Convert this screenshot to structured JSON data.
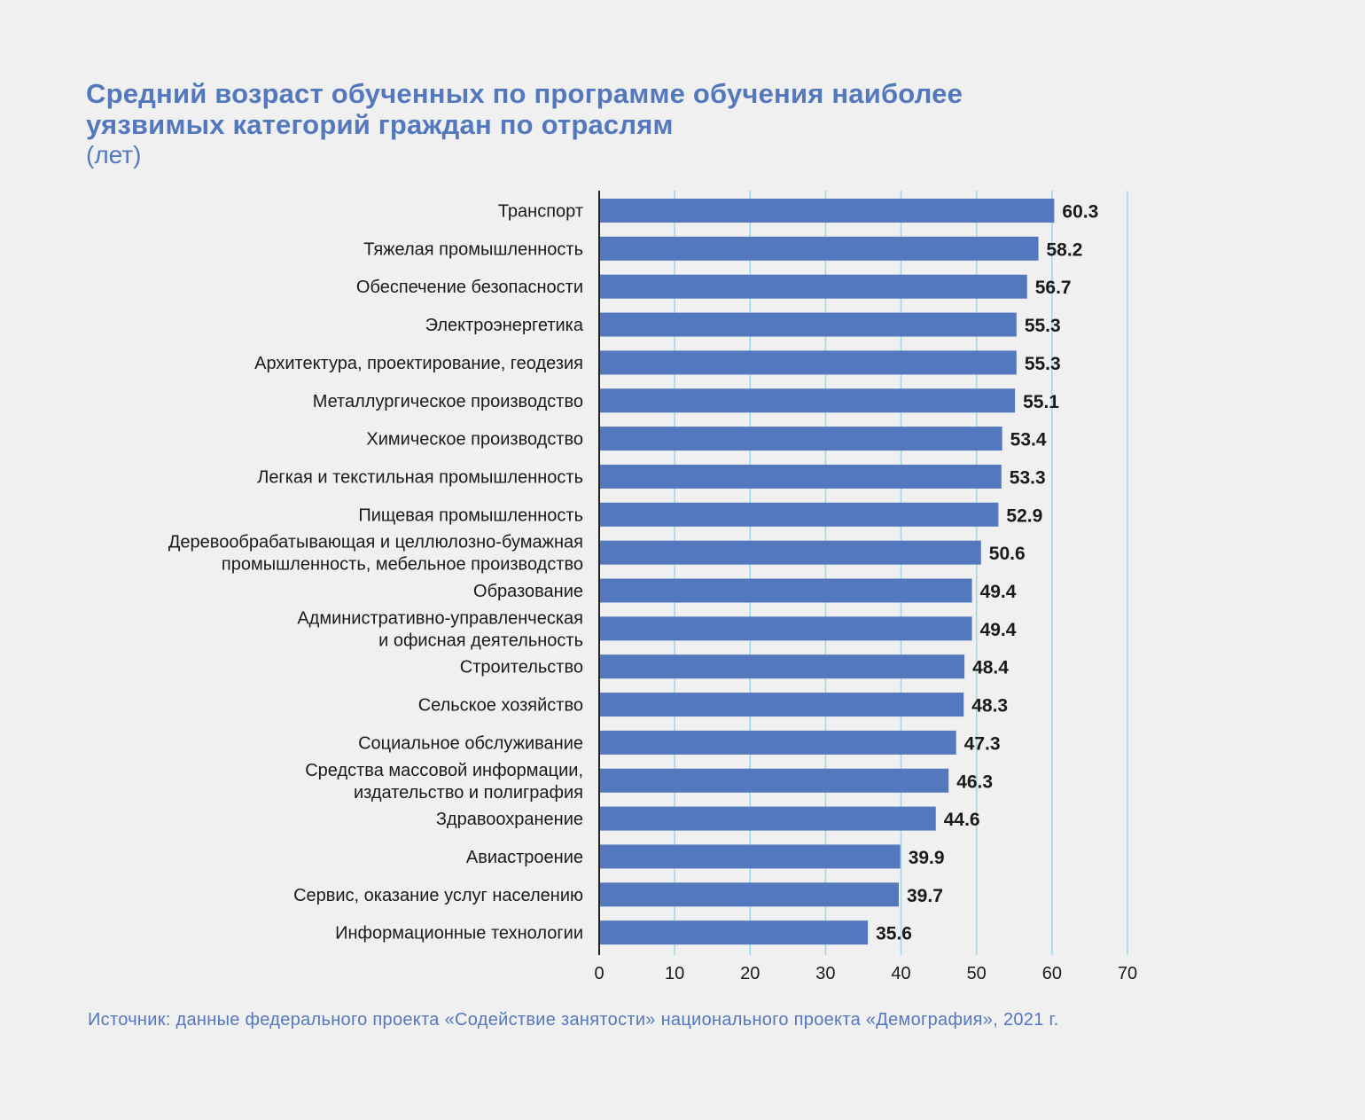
{
  "title_line1": "Средний возраст обученных по программе обучения наиболее",
  "title_line2": "уязвимых категорий граждан по отраслям",
  "unit": "(лет)",
  "source": "Источник: данные федерального проекта «Содействие занятости» национального проекта «Демография», 2021 г.",
  "colors": {
    "bar": "#5478be",
    "grid": "#9dd6ec",
    "axis": "#222222",
    "title": "#5478be",
    "text": "#1a1a1a"
  },
  "chart_data": {
    "type": "bar",
    "orientation": "horizontal",
    "title": "Средний возраст обученных по программе обучения наиболее уязвимых категорий граждан по отраслям",
    "subtitle": "(лет)",
    "categories": [
      [
        "Транспорт"
      ],
      [
        "Тяжелая промышленность"
      ],
      [
        "Обеспечение безопасности"
      ],
      [
        "Электроэнергетика"
      ],
      [
        "Архитектура, проектирование, геодезия"
      ],
      [
        "Металлургическое производство"
      ],
      [
        "Химическое производство"
      ],
      [
        "Легкая и текстильная промышленность"
      ],
      [
        "Пищевая промышленность"
      ],
      [
        "Деревообрабатывающая и целлюлозно-бумажная",
        "промышленность, мебельное производство"
      ],
      [
        "Образование"
      ],
      [
        "Административно-управленческая",
        "и офисная деятельность"
      ],
      [
        "Строительство"
      ],
      [
        "Сельское хозяйство"
      ],
      [
        "Социальное обслуживание"
      ],
      [
        "Средства массовой информации,",
        "издательство и полиграфия"
      ],
      [
        "Здравоохранение"
      ],
      [
        "Авиастроение"
      ],
      [
        "Сервис, оказание услуг населению"
      ],
      [
        "Информационные технологии"
      ]
    ],
    "values": [
      60.3,
      58.2,
      56.7,
      55.3,
      55.3,
      55.1,
      53.4,
      53.3,
      52.9,
      50.6,
      49.4,
      49.4,
      48.4,
      48.3,
      47.3,
      46.3,
      44.6,
      39.9,
      39.7,
      35.6
    ],
    "value_labels": [
      "60.3",
      "58.2",
      "56.7",
      "55.3",
      "55.3",
      "55.1",
      "53.4",
      "53.3",
      "52.9",
      "50.6",
      "49.4",
      "49.4",
      "48.4",
      "48.3",
      "47.3",
      "46.3",
      "44.6",
      "39.9",
      "39.7",
      "35.6"
    ],
    "xlim": [
      0,
      70
    ],
    "xticks": [
      0,
      10,
      20,
      30,
      40,
      50,
      60,
      70
    ],
    "grid": true,
    "legend": "none"
  }
}
